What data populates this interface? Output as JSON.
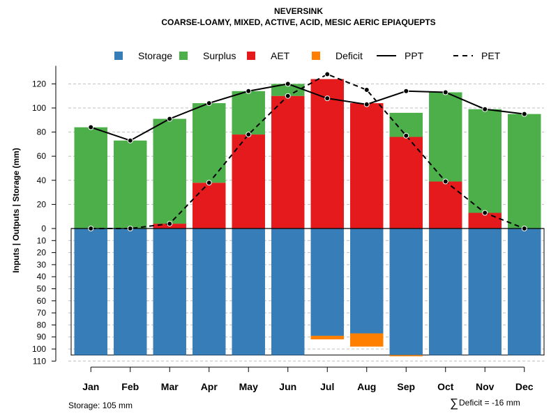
{
  "colors": {
    "storage": "#377EB8",
    "surplus": "#4DAF4A",
    "aet": "#E41A1C",
    "deficit": "#FF7F00",
    "ppt": "#000000",
    "pet": "#000000",
    "grid": "#BEBEBE"
  },
  "chart_data": {
    "type": "bar",
    "title": "NEVERSINK",
    "subtitle": "COARSE-LOAMY, MIXED, ACTIVE, ACID, MESIC AERIC EPIAQUEPTS",
    "ylabel": "Inputs | Outputs | Storage    (mm)",
    "upper_ticks": [
      "0",
      "20",
      "40",
      "60",
      "80",
      "100",
      "120"
    ],
    "lower_ticks": [
      "10",
      "20",
      "30",
      "40",
      "50",
      "60",
      "70",
      "80",
      "90",
      "100",
      "110"
    ],
    "ylim_upper": [
      0,
      135
    ],
    "ylim_lower": [
      0,
      110
    ],
    "storage_capacity": 105,
    "categories": [
      "Jan",
      "Feb",
      "Mar",
      "Apr",
      "May",
      "Jun",
      "Jul",
      "Aug",
      "Sep",
      "Oct",
      "Nov",
      "Dec"
    ],
    "legend": [
      {
        "label": "Storage",
        "key": "storage",
        "kind": "box"
      },
      {
        "label": "Surplus",
        "key": "surplus",
        "kind": "box"
      },
      {
        "label": "AET",
        "key": "aet",
        "kind": "box"
      },
      {
        "label": "Deficit",
        "key": "deficit",
        "kind": "box"
      },
      {
        "label": "PPT",
        "key": "ppt",
        "kind": "solid"
      },
      {
        "label": "PET",
        "key": "pet",
        "kind": "dashed"
      }
    ],
    "series": [
      {
        "name": "AET",
        "values": [
          0,
          0,
          4,
          38,
          78,
          110,
          124,
          104,
          76,
          39,
          13,
          0
        ]
      },
      {
        "name": "Surplus",
        "values": [
          84,
          73,
          87,
          66,
          36,
          10,
          0,
          0,
          20,
          74,
          86,
          95
        ]
      },
      {
        "name": "Storage",
        "values": [
          105,
          105,
          105,
          105,
          105,
          105,
          89,
          87,
          105,
          105,
          105,
          105
        ]
      },
      {
        "name": "Deficit",
        "values": [
          0,
          0,
          0,
          0,
          0,
          0,
          3,
          11,
          1,
          0,
          0,
          0
        ]
      },
      {
        "name": "PPT",
        "values": [
          84,
          73,
          91,
          104,
          114,
          120,
          108,
          103,
          114,
          113,
          99,
          95
        ]
      },
      {
        "name": "PET",
        "values": [
          0,
          0,
          4,
          38,
          78,
          110,
          128,
          115,
          77,
          39,
          13,
          0
        ]
      }
    ]
  },
  "footer": {
    "storage_text": "Storage: 105 mm",
    "deficit_symbol": "∑",
    "deficit_text": "Deficit = -16 mm"
  }
}
